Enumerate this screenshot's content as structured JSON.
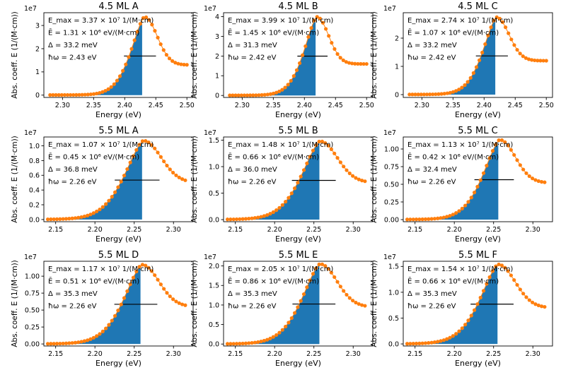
{
  "colors": {
    "fill": "#1f77b4",
    "markers": "#ff7f0e",
    "marker_edge": "#ff7f0e",
    "line": "#000000"
  },
  "common": {
    "xlabel": "Energy (eV)",
    "ylabel": "Abs. coeff. E (1/(M·cm))",
    "yexp": "1e7"
  },
  "chart_data": [
    {
      "type": "area",
      "title": "4.5 ML A",
      "ylabel": "Abs. coeff. E (1/(M·cm))",
      "yexp": "1e7",
      "xlim": [
        2.27,
        2.51
      ],
      "ylim": [
        -0.1,
        3.55
      ],
      "xticks": [
        2.3,
        2.35,
        2.4,
        2.45,
        2.5
      ],
      "xticklabels": [
        "2.30",
        "2.35",
        "2.40",
        "2.45",
        "2.50"
      ],
      "yticks": [
        0,
        1,
        2,
        3
      ],
      "yticklabels": [
        "0",
        "1",
        "2",
        "3"
      ],
      "peak_x": 2.432,
      "peak_y": 3.37,
      "fill_end": 2.428,
      "baseline": 1.3,
      "width": 0.0332,
      "hw": 2.43,
      "x_start": 2.28,
      "x_end": 2.5,
      "n_points": 48,
      "annotations": {
        "emax": "3.37 × 10⁷ 1/(M·cm)",
        "ebar": "1.31 × 10⁶ eV/(M·cm)",
        "delta": "Δ = 33.2 meV",
        "hw": "ħω = 2.43 eV"
      }
    },
    {
      "type": "area",
      "title": "4.5 ML B",
      "ylabel": "Abs. coeff. E (1/(M·cm))",
      "yexp": "1e7",
      "xlim": [
        2.27,
        2.51
      ],
      "ylim": [
        -0.1,
        4.2
      ],
      "xticks": [
        2.3,
        2.35,
        2.4,
        2.45,
        2.5
      ],
      "xticklabels": [
        "2.30",
        "2.35",
        "2.40",
        "2.45",
        "2.50"
      ],
      "yticks": [
        0,
        1,
        2,
        3,
        4
      ],
      "yticklabels": [
        "0",
        "1",
        "2",
        "3",
        "4"
      ],
      "peak_x": 2.42,
      "peak_y": 3.99,
      "fill_end": 2.418,
      "baseline": 1.6,
      "width": 0.0313,
      "hw": 2.42,
      "x_start": 2.28,
      "x_end": 2.5,
      "n_points": 48,
      "annotations": {
        "emax": "3.99 × 10⁷ 1/(M·cm)",
        "ebar": "1.45 × 10⁶ eV/(M·cm)",
        "delta": "Δ = 31.3 meV",
        "hw": "ħω = 2.42 eV"
      }
    },
    {
      "type": "area",
      "title": "4.5 ML C",
      "ylabel": "Abs. coeff. E (1/(M·cm))",
      "yexp": "1e7",
      "xlim": [
        2.27,
        2.51
      ],
      "ylim": [
        -0.1,
        2.9
      ],
      "xticks": [
        2.3,
        2.35,
        2.4,
        2.45,
        2.5
      ],
      "xticklabels": [
        "2.30",
        "2.35",
        "2.40",
        "2.45",
        "2.50"
      ],
      "yticks": [
        0,
        1,
        2
      ],
      "yticklabels": [
        "0",
        "1",
        "2"
      ],
      "peak_x": 2.42,
      "peak_y": 2.74,
      "fill_end": 2.418,
      "baseline": 1.2,
      "width": 0.0332,
      "hw": 2.42,
      "x_start": 2.28,
      "x_end": 2.5,
      "n_points": 48,
      "annotations": {
        "emax": "2.74 × 10⁷ 1/(M·cm)",
        "ebar": "1.07 × 10⁶ eV/(M·cm)",
        "delta": "Δ = 33.2 meV",
        "hw": "ħω = 2.42 eV"
      }
    },
    {
      "type": "area",
      "title": "5.5 ML A",
      "ylabel": "Abs. coeff. E (1/(M·cm))",
      "yexp": "1e7",
      "xlim": [
        2.135,
        2.325
      ],
      "ylim": [
        -0.03,
        1.12
      ],
      "xticks": [
        2.15,
        2.2,
        2.25,
        2.3
      ],
      "xticklabels": [
        "2.15",
        "2.20",
        "2.25",
        "2.30"
      ],
      "yticks": [
        0.0,
        0.2,
        0.4,
        0.6,
        0.8,
        1.0
      ],
      "yticklabels": [
        "0.0",
        "0.2",
        "0.4",
        "0.6",
        "0.8",
        "1.0"
      ],
      "peak_x": 2.262,
      "peak_y": 1.07,
      "fill_end": 2.26,
      "baseline": 0.5,
      "width": 0.0368,
      "hw": 2.26,
      "x_start": 2.14,
      "x_end": 2.315,
      "n_points": 46,
      "annotations": {
        "emax": "1.07 × 10⁷ 1/(M·cm)",
        "ebar": "0.45 × 10⁶ eV/(M·cm)",
        "delta": "Δ = 36.8 meV",
        "hw": "ħω = 2.26 eV"
      }
    },
    {
      "type": "area",
      "title": "5.5 ML B",
      "ylabel": "Abs. coeff. E (1/(M·cm))",
      "yexp": "1e7",
      "xlim": [
        2.135,
        2.325
      ],
      "ylim": [
        -0.04,
        1.56
      ],
      "xticks": [
        2.15,
        2.2,
        2.25,
        2.3
      ],
      "xticklabels": [
        "2.15",
        "2.20",
        "2.25",
        "2.30"
      ],
      "yticks": [
        0.0,
        0.5,
        1.0,
        1.5
      ],
      "yticklabels": [
        "0.0",
        "0.5",
        "1.0",
        "1.5"
      ],
      "peak_x": 2.258,
      "peak_y": 1.48,
      "fill_end": 2.257,
      "baseline": 0.7,
      "width": 0.036,
      "hw": 2.26,
      "x_start": 2.14,
      "x_end": 2.315,
      "n_points": 46,
      "annotations": {
        "emax": "1.48 × 10⁷ 1/(M·cm)",
        "ebar": "0.66 × 10⁶ eV/(M·cm)",
        "delta": "Δ = 36.0 meV",
        "hw": "ħω = 2.26 eV"
      }
    },
    {
      "type": "area",
      "title": "5.5 ML C",
      "ylabel": "Abs. coeff. E (1/(M·cm))",
      "yexp": "1e7",
      "xlim": [
        2.135,
        2.325
      ],
      "ylim": [
        -0.03,
        1.17
      ],
      "xticks": [
        2.15,
        2.2,
        2.25,
        2.3
      ],
      "xticklabels": [
        "2.15",
        "2.20",
        "2.25",
        "2.30"
      ],
      "yticks": [
        0.0,
        0.25,
        0.5,
        0.75,
        1.0
      ],
      "yticklabels": [
        "0.00",
        "0.25",
        "0.50",
        "0.75",
        "1.00"
      ],
      "peak_x": 2.258,
      "peak_y": 1.13,
      "fill_end": 2.256,
      "baseline": 0.52,
      "width": 0.0324,
      "hw": 2.26,
      "x_start": 2.14,
      "x_end": 2.315,
      "n_points": 46,
      "annotations": {
        "emax": "1.13 × 10⁷ 1/(M·cm)",
        "ebar": "0.42 × 10⁶ eV/(M·cm)",
        "delta": "Δ = 32.4 meV",
        "hw": "ħω = 2.26 eV"
      }
    },
    {
      "type": "area",
      "title": "5.5 ML D",
      "ylabel": "Abs. coeff. E (1/(M·cm))",
      "yexp": "1e7",
      "xlim": [
        2.135,
        2.325
      ],
      "ylim": [
        -0.03,
        1.22
      ],
      "xticks": [
        2.15,
        2.2,
        2.25,
        2.3
      ],
      "xticklabels": [
        "2.15",
        "2.20",
        "2.25",
        "2.30"
      ],
      "yticks": [
        0.0,
        0.25,
        0.5,
        0.75,
        1.0
      ],
      "yticklabels": [
        "0.00",
        "0.25",
        "0.50",
        "0.75",
        "1.00"
      ],
      "peak_x": 2.26,
      "peak_y": 1.17,
      "fill_end": 2.258,
      "baseline": 0.55,
      "width": 0.0353,
      "hw": 2.26,
      "x_start": 2.14,
      "x_end": 2.315,
      "n_points": 46,
      "annotations": {
        "emax": "1.17 × 10⁷ 1/(M·cm)",
        "ebar": "0.51 × 10⁶ eV/(M·cm)",
        "delta": "Δ = 35.3 meV",
        "hw": "ħω = 2.26 eV"
      }
    },
    {
      "type": "area",
      "title": "5.5 ML E",
      "ylabel": "Abs. coeff. E (1/(M·cm))",
      "yexp": "1e7",
      "xlim": [
        2.135,
        2.325
      ],
      "ylim": [
        -0.05,
        2.12
      ],
      "xticks": [
        2.15,
        2.2,
        2.25,
        2.3
      ],
      "xticklabels": [
        "2.15",
        "2.20",
        "2.25",
        "2.30"
      ],
      "yticks": [
        0.0,
        0.5,
        1.0,
        1.5,
        2.0
      ],
      "yticklabels": [
        "0.0",
        "0.5",
        "1.0",
        "1.5",
        "2.0"
      ],
      "peak_x": 2.258,
      "peak_y": 2.05,
      "fill_end": 2.257,
      "baseline": 0.95,
      "width": 0.0353,
      "hw": 2.26,
      "x_start": 2.14,
      "x_end": 2.315,
      "n_points": 46,
      "annotations": {
        "emax": "2.05 × 10⁷ 1/(M·cm)",
        "ebar": "0.86 × 10⁶ eV/(M·cm)",
        "delta": "Δ = 35.3 meV",
        "hw": "ħω = 2.26 eV"
      }
    },
    {
      "type": "area",
      "title": "5.5 ML F",
      "ylabel": "Abs. coeff. E (1/(M·cm))",
      "yexp": "1e7",
      "xlim": [
        2.135,
        2.325
      ],
      "ylim": [
        -0.04,
        1.6
      ],
      "xticks": [
        2.15,
        2.2,
        2.25,
        2.3
      ],
      "xticklabels": [
        "2.15",
        "2.20",
        "2.25",
        "2.30"
      ],
      "yticks": [
        0.0,
        0.5,
        1.0,
        1.5
      ],
      "yticklabels": [
        "0.0",
        "0.5",
        "1.0",
        "1.5"
      ],
      "peak_x": 2.256,
      "peak_y": 1.54,
      "fill_end": 2.255,
      "baseline": 0.7,
      "width": 0.0353,
      "hw": 2.26,
      "x_start": 2.14,
      "x_end": 2.315,
      "n_points": 46,
      "annotations": {
        "emax": "1.54 × 10⁷ 1/(M·cm)",
        "ebar": "0.66 × 10⁶ eV/(M·cm)",
        "delta": "Δ = 35.3 meV",
        "hw": "ħω = 2.26 eV"
      }
    }
  ]
}
